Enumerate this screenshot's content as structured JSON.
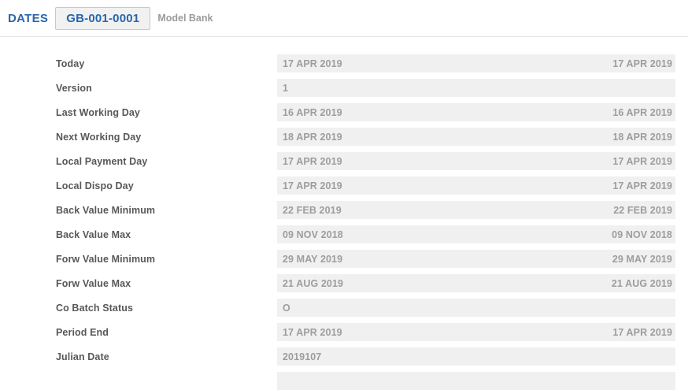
{
  "header": {
    "app_title": "DATES",
    "record_id": "GB-001-0001",
    "record_name": "Model Bank"
  },
  "colors": {
    "accent_blue": "#2766ad",
    "label_gray": "#58585b",
    "value_gray": "#9d9d9f",
    "strip_bg": "#f0f0f0"
  },
  "fields": [
    {
      "label": "Today",
      "value": "17 APR 2019",
      "value_right": "17 APR 2019"
    },
    {
      "label": "Version",
      "value": "1",
      "value_right": ""
    },
    {
      "label": "Last Working Day",
      "value": "16 APR 2019",
      "value_right": "16 APR 2019"
    },
    {
      "label": "Next Working Day",
      "value": "18 APR 2019",
      "value_right": "18 APR 2019"
    },
    {
      "label": "Local Payment Day",
      "value": "17 APR 2019",
      "value_right": "17 APR 2019"
    },
    {
      "label": "Local Dispo Day",
      "value": "17 APR 2019",
      "value_right": "17 APR 2019"
    },
    {
      "label": "Back Value Minimum",
      "value": "22 FEB 2019",
      "value_right": "22 FEB 2019"
    },
    {
      "label": "Back Value Max",
      "value": "09 NOV 2018",
      "value_right": "09 NOV 2018"
    },
    {
      "label": "Forw Value Minimum",
      "value": "29 MAY 2019",
      "value_right": "29 MAY 2019"
    },
    {
      "label": "Forw Value Max",
      "value": "21 AUG 2019",
      "value_right": "21 AUG 2019"
    },
    {
      "label": "Co Batch Status",
      "value": "O",
      "value_right": ""
    },
    {
      "label": "Period End",
      "value": "17 APR 2019",
      "value_right": "17 APR 2019"
    },
    {
      "label": "Julian Date",
      "value": "2019107",
      "value_right": ""
    },
    {
      "label": "",
      "value": "",
      "value_right": ""
    }
  ]
}
